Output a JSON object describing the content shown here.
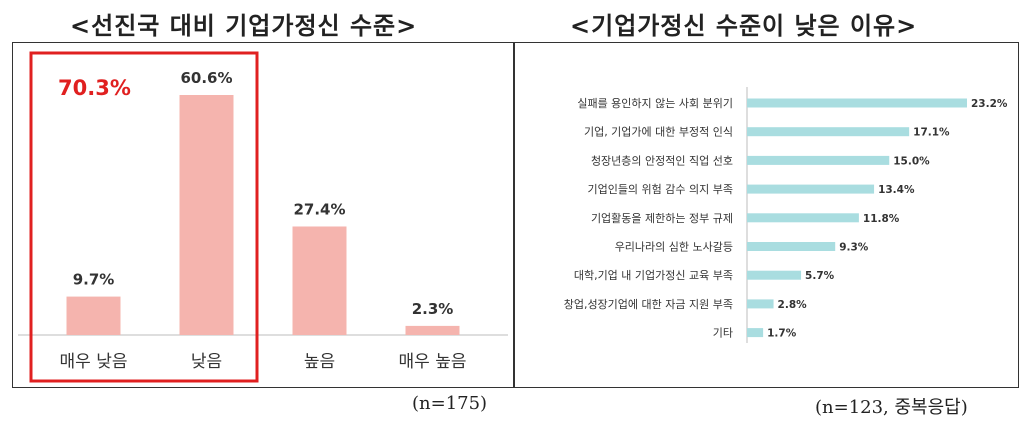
{
  "colors": {
    "bar_left": "#f5b4ae",
    "bar_right": "#a9dde0",
    "highlight": "#e02020",
    "axis": "#bdbdbd"
  },
  "chart_data": [
    {
      "type": "bar",
      "title": "<선진국 대비 기업가정신 수준>",
      "categories": [
        "매우 낮음",
        "낮음",
        "높음",
        "매우 높음"
      ],
      "values": [
        9.7,
        60.6,
        27.4,
        2.3
      ],
      "value_labels": [
        "9.7%",
        "60.6%",
        "27.4%",
        "2.3%"
      ],
      "highlight": {
        "categories": [
          "매우 낮음",
          "낮음"
        ],
        "label": "70.3%"
      },
      "note": "(n=175)"
    },
    {
      "type": "bar",
      "orientation": "horizontal",
      "title": "<기업가정신 수준이 낮은 이유>",
      "categories": [
        "실패를 용인하지 않는 사회 분위기",
        "기업, 기업가에 대한 부정적 인식",
        "청장년층의 안정적인 직업 선호",
        "기업인들의 위험 감수 의지 부족",
        "기업활동을 제한하는 정부 규제",
        "우리나라의 심한 노사갈등",
        "대학,기업 내 기업가정신 교육 부족",
        "창업,성장기업에 대한 자금 지원 부족",
        "기타"
      ],
      "values": [
        23.2,
        17.1,
        15.0,
        13.4,
        11.8,
        9.3,
        5.7,
        2.8,
        1.7
      ],
      "value_labels": [
        "23.2%",
        "17.1%",
        "15.0%",
        "13.4%",
        "11.8%",
        "9.3%",
        "5.7%",
        "2.8%",
        "1.7%"
      ],
      "note": "(n=123, 중복응답)"
    }
  ]
}
